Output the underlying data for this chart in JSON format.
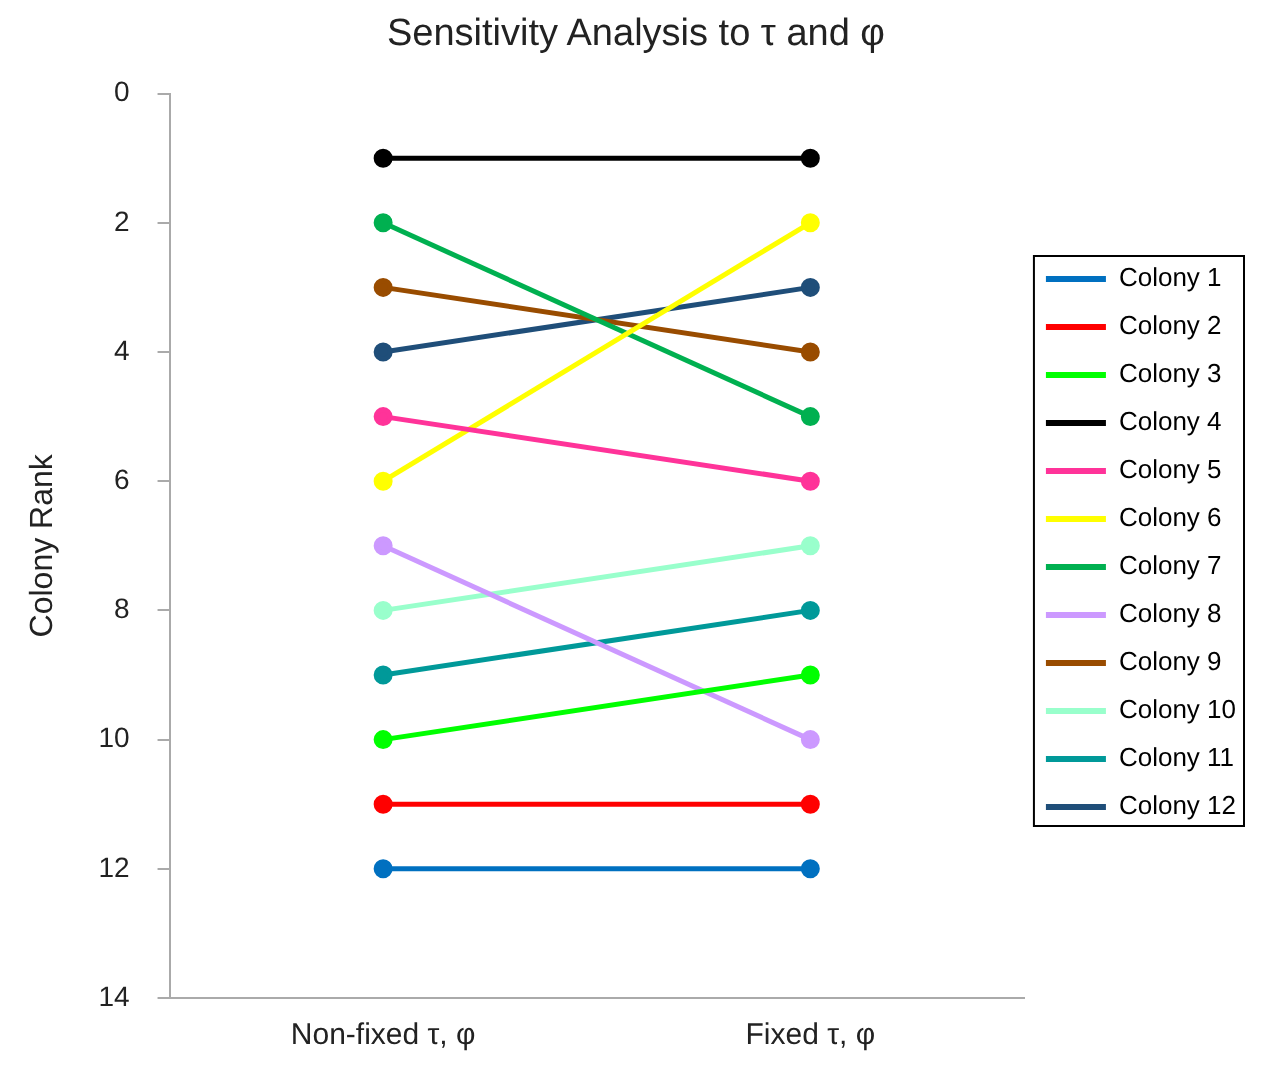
{
  "chart_data": {
    "type": "line",
    "title": "Sensitivity Analysis to τ and φ",
    "ylabel": "Colony Rank",
    "categories": [
      "Non-fixed τ, φ",
      "Fixed τ, φ"
    ],
    "series": [
      {
        "name": "Colony 1",
        "color": "#0070c0",
        "values": [
          12,
          12
        ]
      },
      {
        "name": "Colony 2",
        "color": "#ff0000",
        "values": [
          11,
          11
        ]
      },
      {
        "name": "Colony 3",
        "color": "#00ff00",
        "values": [
          10,
          9
        ]
      },
      {
        "name": "Colony 4",
        "color": "#000000",
        "values": [
          1,
          1
        ]
      },
      {
        "name": "Colony 5",
        "color": "#ff3399",
        "values": [
          5,
          6
        ]
      },
      {
        "name": "Colony 6",
        "color": "#ffff00",
        "values": [
          6,
          2
        ]
      },
      {
        "name": "Colony 7",
        "color": "#00b050",
        "values": [
          2,
          5
        ]
      },
      {
        "name": "Colony 8",
        "color": "#cc99ff",
        "values": [
          7,
          10
        ]
      },
      {
        "name": "Colony 9",
        "color": "#994c00",
        "values": [
          3,
          4
        ]
      },
      {
        "name": "Colony 10",
        "color": "#99ffcc",
        "values": [
          8,
          7
        ]
      },
      {
        "name": "Colony 11",
        "color": "#009999",
        "values": [
          9,
          8
        ]
      },
      {
        "name": "Colony 12",
        "color": "#1f4e79",
        "values": [
          4,
          3
        ]
      }
    ],
    "ylim": [
      14,
      0
    ],
    "yticks": [
      0,
      2,
      4,
      6,
      8,
      10,
      12,
      14
    ],
    "grid": false,
    "legend": "right",
    "marker": "circle",
    "line_style": "solid"
  }
}
